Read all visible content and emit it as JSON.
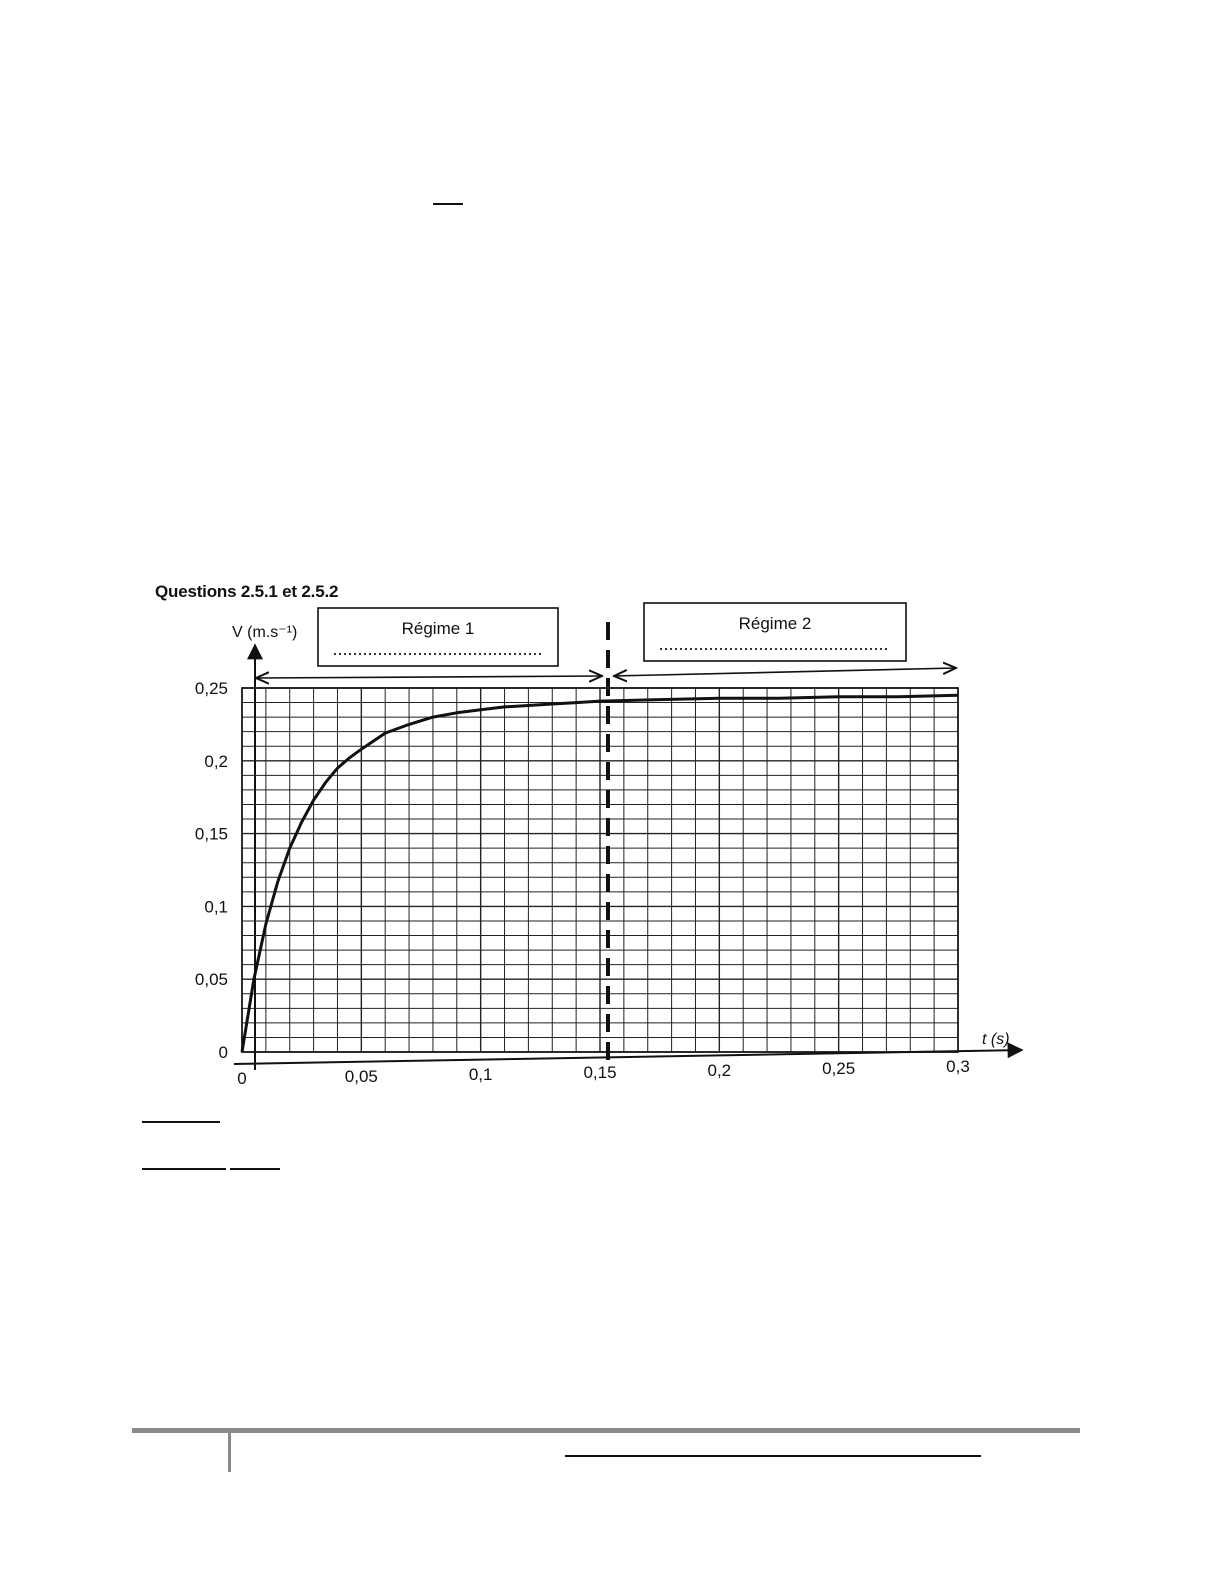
{
  "caption": "Questions 2.5.1 et 2.5.2",
  "chart_data": {
    "type": "line",
    "x_label": "t (s)",
    "y_label": "V (m.s⁻¹)",
    "x_ticks": [
      "0",
      "0,05",
      "0,1",
      "0,15",
      "0,2",
      "0,25",
      "0,3"
    ],
    "y_ticks": [
      "0",
      "0,05",
      "0,1",
      "0,15",
      "0,2",
      "0,25"
    ],
    "xlim": [
      0,
      0.3
    ],
    "ylim": [
      0,
      0.25
    ],
    "grid": true,
    "regions": [
      {
        "label": "Régime 1",
        "range": [
          0,
          0.15
        ]
      },
      {
        "label": "Régime 2",
        "range": [
          0.15,
          0.3
        ]
      }
    ],
    "separator_x": 0.15,
    "series": [
      {
        "x": [
          0,
          0.005,
          0.01,
          0.015,
          0.02,
          0.025,
          0.03,
          0.035,
          0.04,
          0.045,
          0.05,
          0.06,
          0.07,
          0.08,
          0.09,
          0.1,
          0.11,
          0.12,
          0.13,
          0.14,
          0.15,
          0.175,
          0.2,
          0.225,
          0.25,
          0.275,
          0.3
        ],
        "values": [
          0,
          0.05,
          0.088,
          0.117,
          0.14,
          0.158,
          0.173,
          0.185,
          0.195,
          0.202,
          0.208,
          0.219,
          0.225,
          0.23,
          0.233,
          0.235,
          0.237,
          0.238,
          0.239,
          0.24,
          0.241,
          0.242,
          0.243,
          0.243,
          0.244,
          0.244,
          0.245
        ]
      }
    ]
  }
}
